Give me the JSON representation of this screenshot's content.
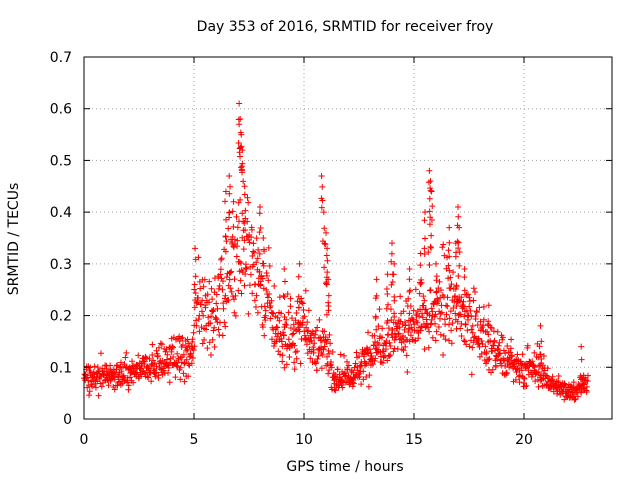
{
  "chart_data": {
    "type": "scatter",
    "title": "Day 353 of 2016, SRMTID for receiver froy",
    "xlabel": "GPS time / hours",
    "ylabel": "SRMTID / TECUs",
    "xlim": [
      0,
      24
    ],
    "ylim": [
      0,
      0.7
    ],
    "xticks": [
      0,
      5,
      10,
      15,
      20
    ],
    "yticks": [
      0,
      0.1,
      0.2,
      0.3,
      0.4,
      0.5,
      0.6,
      0.7
    ],
    "xtick_labels": [
      "0",
      "5",
      "10",
      "15",
      "20"
    ],
    "ytick_labels": [
      "0",
      "0.1",
      "0.2",
      "0.3",
      "0.4",
      "0.5",
      "0.6",
      "0.7"
    ],
    "grid": true,
    "marker": "+",
    "color": "#ff0000",
    "series_name": "SRMTID",
    "baseline_profile": [
      [
        0.0,
        0.08
      ],
      [
        1.0,
        0.08
      ],
      [
        2.0,
        0.085
      ],
      [
        3.0,
        0.1
      ],
      [
        4.0,
        0.115
      ],
      [
        4.9,
        0.12
      ],
      [
        5.1,
        0.22
      ],
      [
        6.0,
        0.2
      ],
      [
        6.5,
        0.27
      ],
      [
        7.0,
        0.34
      ],
      [
        7.5,
        0.3
      ],
      [
        8.0,
        0.27
      ],
      [
        8.5,
        0.2
      ],
      [
        9.0,
        0.15
      ],
      [
        9.5,
        0.16
      ],
      [
        10.0,
        0.2
      ],
      [
        10.5,
        0.12
      ],
      [
        11.0,
        0.15
      ],
      [
        11.3,
        0.08
      ],
      [
        12.0,
        0.08
      ],
      [
        12.5,
        0.09
      ],
      [
        13.0,
        0.13
      ],
      [
        13.5,
        0.15
      ],
      [
        14.0,
        0.17
      ],
      [
        14.5,
        0.17
      ],
      [
        15.0,
        0.18
      ],
      [
        15.5,
        0.19
      ],
      [
        16.0,
        0.2
      ],
      [
        16.5,
        0.22
      ],
      [
        17.0,
        0.21
      ],
      [
        17.5,
        0.19
      ],
      [
        18.0,
        0.16
      ],
      [
        18.5,
        0.14
      ],
      [
        19.0,
        0.12
      ],
      [
        19.5,
        0.1
      ],
      [
        20.0,
        0.09
      ],
      [
        20.5,
        0.1
      ],
      [
        21.0,
        0.08
      ],
      [
        21.5,
        0.06
      ],
      [
        22.0,
        0.055
      ],
      [
        22.5,
        0.06
      ],
      [
        22.9,
        0.07
      ]
    ],
    "peaks": [
      {
        "x": 5.05,
        "y": 0.33
      },
      {
        "x": 6.45,
        "y": 0.44
      },
      {
        "x": 6.6,
        "y": 0.47
      },
      {
        "x": 6.8,
        "y": 0.42
      },
      {
        "x": 7.05,
        "y": 0.61
      },
      {
        "x": 7.1,
        "y": 0.58
      },
      {
        "x": 7.15,
        "y": 0.55
      },
      {
        "x": 7.2,
        "y": 0.52
      },
      {
        "x": 7.3,
        "y": 0.45
      },
      {
        "x": 8.0,
        "y": 0.41
      },
      {
        "x": 8.15,
        "y": 0.35
      },
      {
        "x": 9.1,
        "y": 0.29
      },
      {
        "x": 9.8,
        "y": 0.3
      },
      {
        "x": 10.8,
        "y": 0.47
      },
      {
        "x": 10.9,
        "y": 0.4
      },
      {
        "x": 11.0,
        "y": 0.36
      },
      {
        "x": 11.05,
        "y": 0.33
      },
      {
        "x": 11.1,
        "y": 0.27
      },
      {
        "x": 13.3,
        "y": 0.27
      },
      {
        "x": 13.8,
        "y": 0.28
      },
      {
        "x": 14.0,
        "y": 0.34
      },
      {
        "x": 14.1,
        "y": 0.3
      },
      {
        "x": 14.8,
        "y": 0.29
      },
      {
        "x": 15.3,
        "y": 0.32
      },
      {
        "x": 15.5,
        "y": 0.4
      },
      {
        "x": 15.7,
        "y": 0.48
      },
      {
        "x": 15.75,
        "y": 0.46
      },
      {
        "x": 15.8,
        "y": 0.44
      },
      {
        "x": 16.0,
        "y": 0.3
      },
      {
        "x": 16.6,
        "y": 0.37
      },
      {
        "x": 16.9,
        "y": 0.34
      },
      {
        "x": 17.0,
        "y": 0.41
      },
      {
        "x": 17.05,
        "y": 0.37
      },
      {
        "x": 17.3,
        "y": 0.29
      },
      {
        "x": 18.4,
        "y": 0.22
      },
      {
        "x": 20.75,
        "y": 0.18
      },
      {
        "x": 22.6,
        "y": 0.14
      }
    ],
    "point_count": 1400
  }
}
